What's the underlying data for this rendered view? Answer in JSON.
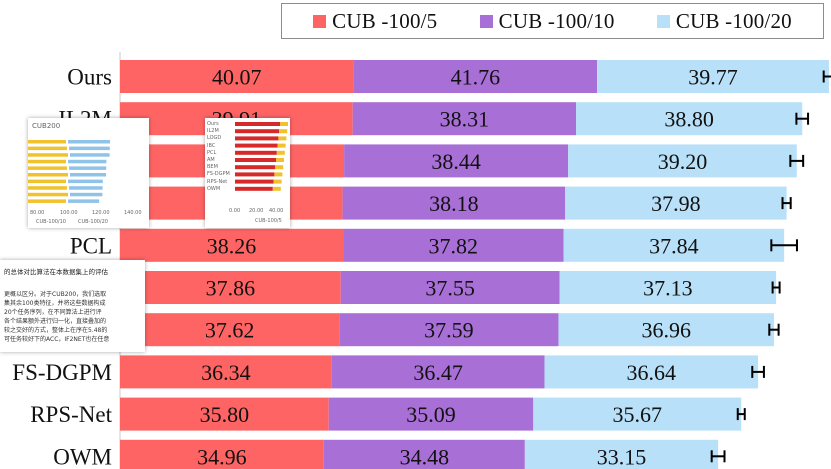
{
  "legend": [
    {
      "label": "CUB -100/5",
      "color": "#ff6464"
    },
    {
      "label": "CUB -100/10",
      "color": "#a86fd6"
    },
    {
      "label": "CUB -100/20",
      "color": "#b8e0f8"
    }
  ],
  "chart_data": {
    "type": "bar",
    "orientation": "horizontal",
    "stacked": true,
    "categories": [
      "Ours",
      "IL2M",
      "",
      "",
      "PCL",
      "",
      "",
      "FS-DGPM",
      "RPS-Net",
      "OWM"
    ],
    "category_labels_visible": [
      "Ours",
      "IL2M",
      "",
      "",
      "PCL",
      "",
      "",
      "FS-DGPM",
      "RPS-Net",
      "OWM"
    ],
    "series": [
      {
        "name": "CUB -100/5",
        "color": "#ff6464",
        "values": [
          40.07,
          39.91,
          null,
          null,
          38.26,
          37.86,
          37.62,
          36.34,
          35.8,
          34.96
        ],
        "value_labels": [
          "40.07",
          "39.91",
          "",
          "",
          "38.26",
          "37.86",
          "37.62",
          "36.34",
          "35.80",
          "34.96"
        ]
      },
      {
        "name": "CUB -100/10",
        "color": "#a86fd6",
        "values": [
          41.76,
          38.31,
          38.44,
          38.18,
          37.82,
          37.55,
          37.59,
          36.47,
          35.09,
          34.48
        ],
        "value_labels": [
          "41.76",
          "38.31",
          "38.44",
          "38.18",
          "37.82",
          "37.55",
          "37.59",
          "36.47",
          "35.09",
          "34.48"
        ]
      },
      {
        "name": "CUB -100/20",
        "color": "#b8e0f8",
        "values": [
          39.77,
          38.8,
          39.2,
          37.98,
          37.84,
          37.13,
          36.96,
          36.64,
          35.67,
          33.15
        ],
        "value_labels": [
          "39.77",
          "38.80",
          "39.20",
          "37.98",
          "37.84",
          "37.13",
          "36.96",
          "36.64",
          "35.67",
          "33.15"
        ]
      }
    ],
    "error_bars": [
      0.9,
      1.0,
      1.1,
      0.7,
      2.2,
      0.6,
      0.8,
      1.0,
      0.6,
      1.1
    ],
    "legend_position": "top-right",
    "grid": false
  },
  "overlays": {
    "thumb1": {
      "title": "CUB200",
      "ticks": [
        "80.00",
        "100.00",
        "120.00",
        "140.00"
      ],
      "legend": [
        "CUB-100/10",
        "CUB-100/20"
      ]
    },
    "thumb2": {
      "rows": [
        "Ours",
        "IL2M",
        "LOGD",
        "IBC",
        "PCL",
        "AM",
        "BEM",
        "FS-DGPM",
        "RPS-Net",
        "OWM"
      ],
      "ticks": [
        "0.00",
        "20.00",
        "40.00"
      ],
      "legend": "CUB-100/5"
    },
    "note_title": "的总体对比算法在本数据集上的评估",
    "note_lines": [
      "更概以区分。对于CUB200，我们选取",
      "集其余100类特征，并将这些数据构成",
      "20个任务序列，在不同算法上进行评",
      "各个结果额外进行归一化，直接叠加的",
      "较之交好的方式，整体上在序在5.48的",
      "可任务较好下的ACC，IF2NET也在任意"
    ]
  }
}
